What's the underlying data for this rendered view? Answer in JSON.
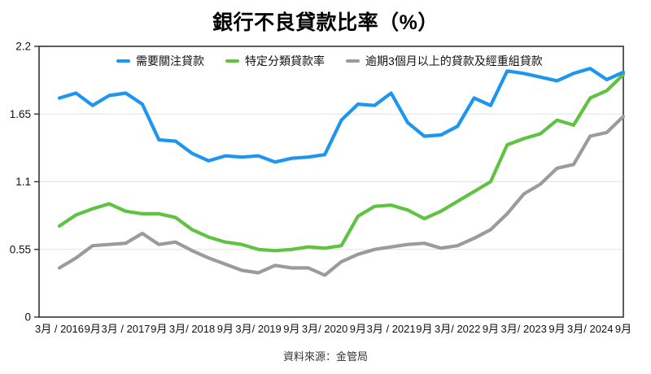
{
  "chart_data": {
    "type": "line",
    "title": "銀行不良貸款比率（%）",
    "source": "資料來源：金管局",
    "ylim": [
      0,
      2.2
    ],
    "yticks": [
      0,
      0.55,
      1.1,
      1.65,
      2.2
    ],
    "ytick_labels": [
      "0",
      "0.55",
      "1.1",
      "1.65",
      "2.2"
    ],
    "x_tick_labels": [
      "3月 / 2016",
      "9月",
      "3月 / 2017",
      "9月",
      "3月/ 2018",
      "9月",
      "3月/ 2019",
      "9月",
      "3月/ 2020",
      "9月",
      "3月 / 2021",
      "9月",
      "3月/ 2022",
      "9月",
      "3月/ 2023",
      "9月",
      "3月/ 2024",
      "9月"
    ],
    "x_tick_every": 2,
    "points_per_series": 35,
    "grid": "horizontal-light",
    "legend_position": "top-inside",
    "frame_color": "#333333",
    "gridline_color": "#e3e3e3",
    "series": [
      {
        "name": "需要關注貸款",
        "color": "#1E96F0",
        "values": [
          1.78,
          1.82,
          1.72,
          1.8,
          1.82,
          1.73,
          1.44,
          1.43,
          1.33,
          1.27,
          1.31,
          1.3,
          1.31,
          1.26,
          1.29,
          1.3,
          1.32,
          1.6,
          1.73,
          1.72,
          1.82,
          1.58,
          1.47,
          1.48,
          1.55,
          1.78,
          1.72,
          2.0,
          1.98,
          1.95,
          1.92,
          1.98,
          2.02,
          1.93,
          1.99
        ]
      },
      {
        "name": "特定分類貸款率",
        "color": "#5FC341",
        "values": [
          0.74,
          0.83,
          0.88,
          0.92,
          0.86,
          0.84,
          0.84,
          0.81,
          0.71,
          0.65,
          0.61,
          0.59,
          0.55,
          0.54,
          0.55,
          0.57,
          0.56,
          0.58,
          0.82,
          0.9,
          0.91,
          0.87,
          0.8,
          0.86,
          0.94,
          1.02,
          1.1,
          1.4,
          1.45,
          1.49,
          1.6,
          1.56,
          1.78,
          1.84,
          1.97
        ]
      },
      {
        "name": "逾期3個月以上的貸款及經重組貸款",
        "color": "#9B9B9B",
        "values": [
          0.4,
          0.48,
          0.58,
          0.59,
          0.6,
          0.68,
          0.59,
          0.61,
          0.54,
          0.48,
          0.43,
          0.38,
          0.36,
          0.42,
          0.4,
          0.4,
          0.34,
          0.45,
          0.51,
          0.55,
          0.57,
          0.59,
          0.6,
          0.56,
          0.58,
          0.64,
          0.71,
          0.84,
          1.0,
          1.08,
          1.21,
          1.24,
          1.47,
          1.5,
          1.63
        ]
      }
    ]
  }
}
